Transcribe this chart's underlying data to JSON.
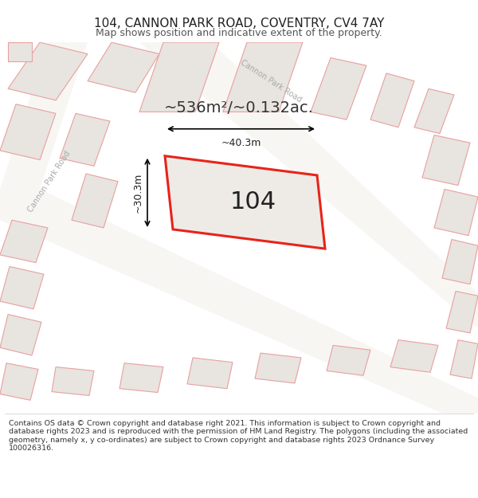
{
  "title": "104, CANNON PARK ROAD, COVENTRY, CV4 7AY",
  "subtitle": "Map shows position and indicative extent of the property.",
  "footer": "Contains OS data © Crown copyright and database right 2021. This information is subject to Crown copyright and database rights 2023 and is reproduced with the permission of HM Land Registry. The polygons (including the associated geometry, namely x, y co-ordinates) are subject to Crown copyright and database rights 2023 Ordnance Survey 100026316.",
  "area_text": "~536m²/~0.132ac.",
  "label_104": "104",
  "dim_width": "~40.3m",
  "dim_height": "~30.3m",
  "road_label_left": "Cannon Park Road",
  "road_label_top": "Cannon Park Road",
  "map_bg": "#eeebe6",
  "building_fill": "#e8e4df",
  "building_stroke": "#e8a0a0",
  "road_fill": "#f8f6f3",
  "highlight_color": "#e8231a",
  "prop_fill": "#eeebe6",
  "title_color": "#222222",
  "footer_color": "#333333",
  "dim_color": "#111111",
  "text_color": "#555555"
}
